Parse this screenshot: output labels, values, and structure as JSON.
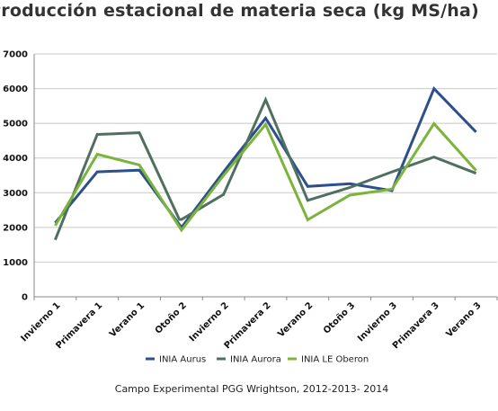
{
  "chart_data": {
    "type": "line",
    "title": "Producción estacional de materia seca (kg MS/ha)",
    "caption": "Campo Experimental PGG Wrightson, 2012-2013- 2014",
    "categories": [
      "Invierno 1",
      "Primavera 1",
      "Verano 1",
      "Otoño 2",
      "Invierno 2",
      "Primavera 2",
      "Verano 2",
      "Otoño 3",
      "Invierno 3",
      "Primavera 3",
      "Verano 3"
    ],
    "ylim": [
      0,
      7000
    ],
    "yticks": [
      0,
      1000,
      2000,
      3000,
      4000,
      5000,
      6000,
      7000
    ],
    "grid": true,
    "legend_position": "bottom",
    "series": [
      {
        "name": "INIA Aurus",
        "color": "#2d4f8a",
        "x": [
          0.0,
          1.0,
          2.0,
          3.0,
          4.0,
          5.0,
          6.0,
          7.0,
          8.0,
          9.0,
          10.0
        ],
        "values": [
          2130,
          3600,
          3650,
          2000,
          3600,
          5150,
          3180,
          3260,
          3060,
          6000,
          4750
        ]
      },
      {
        "name": "INIA Aurora",
        "color": "#4f7060",
        "x": [
          0.0,
          1.0,
          2.0,
          2.95,
          3.0,
          4.0,
          5.0,
          6.0,
          7.0,
          8.0,
          9.0,
          10.0
        ],
        "values": [
          1640,
          4680,
          4730,
          2230,
          2230,
          2950,
          5680,
          2780,
          3150,
          3600,
          4030,
          3560
        ]
      },
      {
        "name": "INIA LE Oberon",
        "color": "#7ab43a",
        "x": [
          0.0,
          1.0,
          2.0,
          3.0,
          4.0,
          5.0,
          6.0,
          7.0,
          8.0,
          9.0,
          10.0
        ],
        "values": [
          2050,
          4110,
          3800,
          1920,
          3500,
          4970,
          2220,
          2930,
          3100,
          4990,
          3640
        ]
      }
    ]
  }
}
